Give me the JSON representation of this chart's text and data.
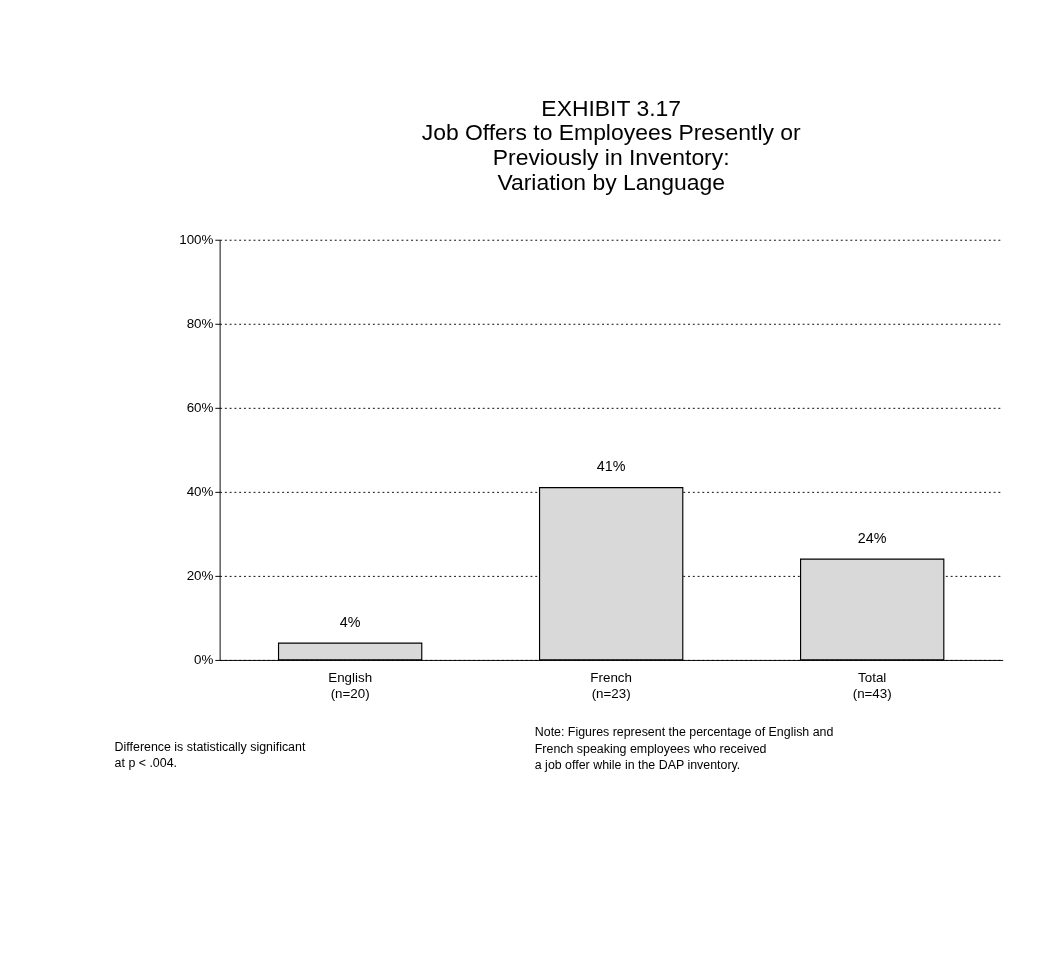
{
  "chart_data": {
    "type": "bar",
    "title": "EXHIBIT 3.17\nJob Offers to Employees Presently or\nPreviously in Inventory:\nVariation by Language",
    "categories": [
      "English\n(n=20)",
      "French\n(n=23)",
      "Total\n(n=43)"
    ],
    "values": [
      4,
      41,
      24
    ],
    "value_labels": [
      "4%",
      "41%",
      "24%"
    ],
    "color": "#d9d9d9",
    "ylim": [
      0,
      100
    ],
    "yticks": [
      {
        "value": 0,
        "label": "0%"
      },
      {
        "value": 20,
        "label": "20%"
      },
      {
        "value": 40,
        "label": "40%"
      },
      {
        "value": 60,
        "label": "60%"
      },
      {
        "value": 80,
        "label": "80%"
      },
      {
        "value": 100,
        "label": "100%"
      }
    ],
    "grid": "y",
    "annotations": [
      "Difference is statistically significant\nat p < .004.",
      "Note: Figures represent the percentage of English and\n         French speaking employees who received\n         a job offer while in the DAP inventory."
    ]
  }
}
